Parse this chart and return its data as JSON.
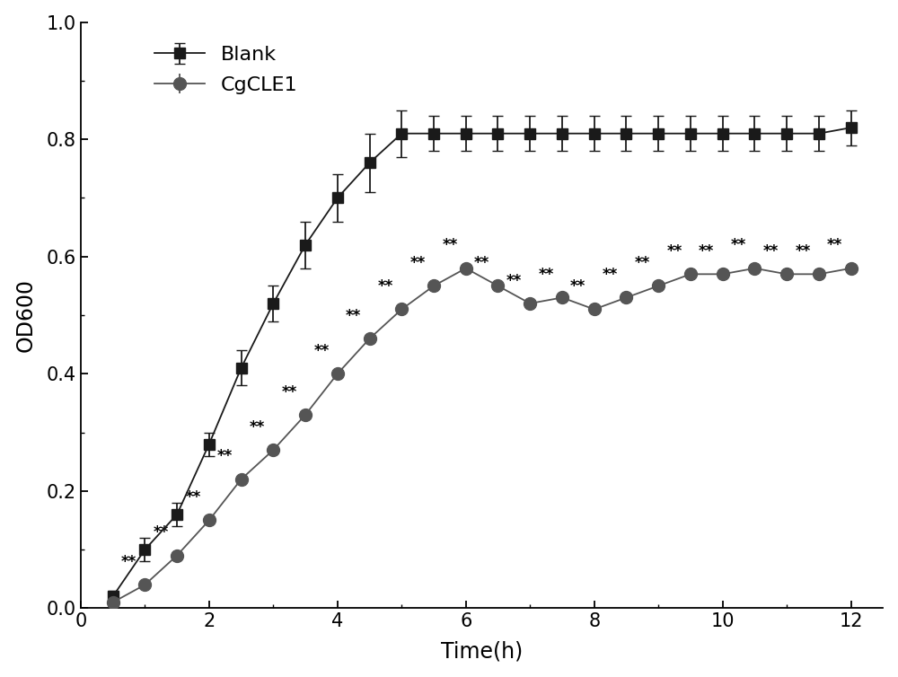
{
  "blank_x": [
    0.5,
    1.0,
    1.5,
    2.0,
    2.5,
    3.0,
    3.5,
    4.0,
    4.5,
    5.0,
    5.5,
    6.0,
    6.5,
    7.0,
    7.5,
    8.0,
    8.5,
    9.0,
    9.5,
    10.0,
    10.5,
    11.0,
    11.5,
    12.0
  ],
  "blank_y": [
    0.02,
    0.1,
    0.16,
    0.28,
    0.41,
    0.52,
    0.62,
    0.7,
    0.76,
    0.81,
    0.81,
    0.81,
    0.81,
    0.81,
    0.81,
    0.81,
    0.81,
    0.81,
    0.81,
    0.81,
    0.81,
    0.81,
    0.81,
    0.82
  ],
  "blank_err": [
    0.01,
    0.02,
    0.02,
    0.02,
    0.03,
    0.03,
    0.04,
    0.04,
    0.05,
    0.04,
    0.03,
    0.03,
    0.03,
    0.03,
    0.03,
    0.03,
    0.03,
    0.03,
    0.03,
    0.03,
    0.03,
    0.03,
    0.03,
    0.03
  ],
  "cgcle1_x": [
    0.5,
    1.0,
    1.5,
    2.0,
    2.5,
    3.0,
    3.5,
    4.0,
    4.5,
    5.0,
    5.5,
    6.0,
    6.5,
    7.0,
    7.5,
    8.0,
    8.5,
    9.0,
    9.5,
    10.0,
    10.5,
    11.0,
    11.5,
    12.0
  ],
  "cgcle1_y": [
    0.01,
    0.04,
    0.09,
    0.15,
    0.22,
    0.27,
    0.33,
    0.4,
    0.46,
    0.51,
    0.55,
    0.58,
    0.55,
    0.52,
    0.53,
    0.51,
    0.53,
    0.55,
    0.57,
    0.57,
    0.58,
    0.57,
    0.57,
    0.58
  ],
  "cgcle1_err": [
    0.005,
    0.005,
    0.005,
    0.005,
    0.005,
    0.005,
    0.005,
    0.005,
    0.005,
    0.005,
    0.005,
    0.005,
    0.005,
    0.005,
    0.005,
    0.005,
    0.005,
    0.005,
    0.005,
    0.005,
    0.005,
    0.005,
    0.005,
    0.005
  ],
  "blank_color": "#1a1a1a",
  "cgcle1_color": "#555555",
  "xlabel": "Time(h)",
  "ylabel": "OD600",
  "ylim": [
    0.0,
    1.0
  ],
  "xlim": [
    0,
    12.5
  ],
  "yticks": [
    0.0,
    0.2,
    0.4,
    0.6,
    0.8,
    1.0
  ],
  "xticks": [
    0,
    2,
    4,
    6,
    8,
    10,
    12
  ],
  "legend_labels": [
    "Blank",
    "CgCLE1"
  ],
  "significance_label": "**",
  "label_fontsize": 17,
  "tick_fontsize": 15,
  "legend_fontsize": 16,
  "sig_fontsize": 12,
  "sig_indices_cgcle1": [
    1,
    2,
    3,
    4,
    5,
    6,
    7,
    8,
    9,
    10,
    11,
    12,
    13,
    14,
    15,
    16,
    17,
    18,
    19,
    20,
    21,
    22,
    23
  ]
}
